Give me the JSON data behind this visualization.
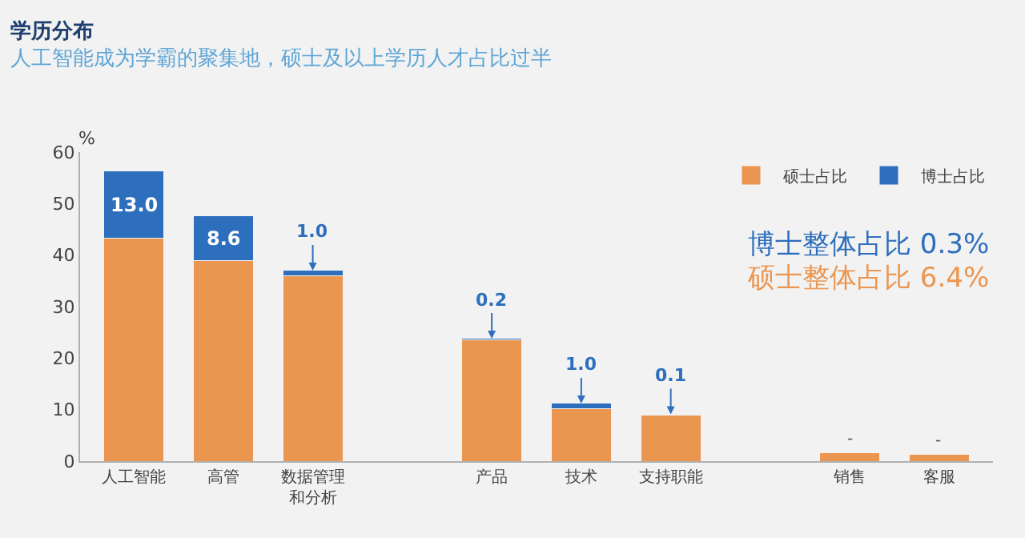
{
  "chart_data": {
    "type": "bar",
    "title": "学历分布",
    "subtitle": "人工智能成为学霸的聚集地，硕士及以上学历人才占比过半",
    "ylabel": "%",
    "categories": [
      "人工智能",
      "高管",
      "数据管理和分析",
      null,
      "产品",
      "技术",
      "支持职能",
      null,
      "销售",
      "客服"
    ],
    "series": [
      {
        "name": "硕士占比",
        "color": "#eb9650",
        "values": [
          43.3,
          39.0,
          36.0,
          null,
          23.6,
          10.2,
          9.0,
          null,
          1.7,
          1.4
        ]
      },
      {
        "name": "博士占比",
        "color": "#2e6fbd",
        "values": [
          13.0,
          8.6,
          1.0,
          null,
          0.2,
          1.0,
          0.1,
          null,
          null,
          null
        ],
        "value_labels": [
          "13.0",
          "8.6",
          "1.0",
          null,
          "0.2",
          "1.0",
          "0.1",
          null,
          "-",
          "-"
        ]
      }
    ],
    "stacked": true,
    "ylim": [
      0,
      60
    ],
    "yticks": [
      0,
      10,
      20,
      30,
      40,
      50,
      60
    ],
    "grid": false,
    "legend": "top right",
    "annotations": [
      "博士整体占比 0.3%",
      "硕士整体占比 6.4%"
    ]
  }
}
